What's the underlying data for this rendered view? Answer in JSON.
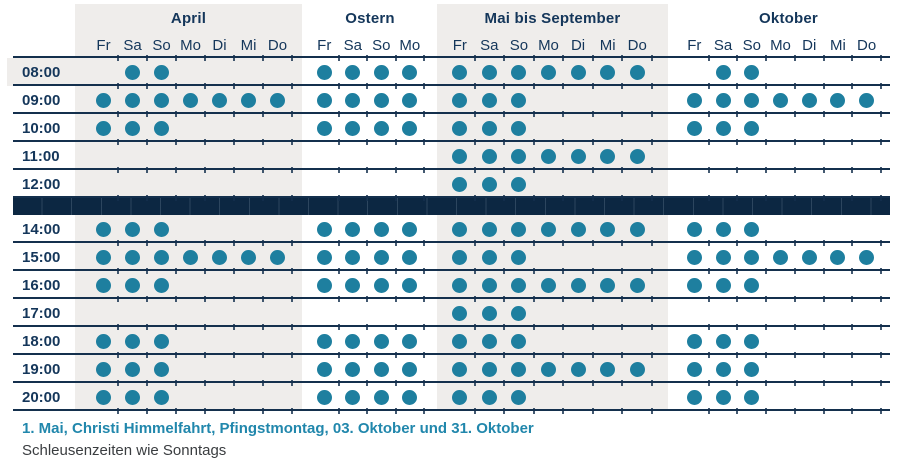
{
  "colors": {
    "navy_text": "#14365a",
    "separator_line": "#14304d",
    "closed_bar": "#0c2742",
    "dot_teal": "#1e7f9f",
    "footer_teal": "#2187ac",
    "band_gray": "#efedeb"
  },
  "schedule": {
    "groups": [
      {
        "id": "april",
        "label": "April",
        "shaded": true,
        "days": [
          "Fr",
          "Sa",
          "So",
          "Mo",
          "Di",
          "Mi",
          "Do"
        ]
      },
      {
        "id": "ostern",
        "label": "Ostern",
        "shaded": false,
        "days": [
          "Fr",
          "Sa",
          "So",
          "Mo"
        ]
      },
      {
        "id": "mai-bis-september",
        "label": "Mai bis September",
        "shaded": true,
        "days": [
          "Fr",
          "Sa",
          "So",
          "Mo",
          "Di",
          "Mi",
          "Do"
        ]
      },
      {
        "id": "oktober",
        "label": "Oktober",
        "shaded": false,
        "days": [
          "Fr",
          "Sa",
          "So",
          "Mo",
          "Di",
          "Mi",
          "Do"
        ]
      }
    ],
    "rows": [
      {
        "time": "08:00",
        "time_shaded": true,
        "dots": [
          [
            0,
            1,
            1,
            0,
            0,
            0,
            0
          ],
          [
            1,
            1,
            1,
            1
          ],
          [
            1,
            1,
            1,
            1,
            1,
            1,
            1
          ],
          [
            0,
            1,
            1,
            0,
            0,
            0,
            0
          ]
        ]
      },
      {
        "time": "09:00",
        "dots": [
          [
            1,
            1,
            1,
            1,
            1,
            1,
            1
          ],
          [
            1,
            1,
            1,
            1
          ],
          [
            1,
            1,
            1,
            0,
            0,
            0,
            0
          ],
          [
            1,
            1,
            1,
            1,
            1,
            1,
            1
          ]
        ]
      },
      {
        "time": "10:00",
        "dots": [
          [
            1,
            1,
            1,
            0,
            0,
            0,
            0
          ],
          [
            1,
            1,
            1,
            1
          ],
          [
            1,
            1,
            1,
            0,
            0,
            0,
            0
          ],
          [
            1,
            1,
            1,
            0,
            0,
            0,
            0
          ]
        ]
      },
      {
        "time": "11:00",
        "dots": [
          [
            0,
            0,
            0,
            0,
            0,
            0,
            0
          ],
          [
            0,
            0,
            0,
            0
          ],
          [
            1,
            1,
            1,
            1,
            1,
            1,
            1
          ],
          [
            0,
            0,
            0,
            0,
            0,
            0,
            0
          ]
        ]
      },
      {
        "time": "12:00",
        "dots": [
          [
            0,
            0,
            0,
            0,
            0,
            0,
            0
          ],
          [
            0,
            0,
            0,
            0
          ],
          [
            1,
            1,
            1,
            0,
            0,
            0,
            0
          ],
          [
            0,
            0,
            0,
            0,
            0,
            0,
            0
          ]
        ]
      },
      {
        "type": "closed"
      },
      {
        "time": "14:00",
        "dots": [
          [
            1,
            1,
            1,
            0,
            0,
            0,
            0
          ],
          [
            1,
            1,
            1,
            1
          ],
          [
            1,
            1,
            1,
            1,
            1,
            1,
            1
          ],
          [
            1,
            1,
            1,
            0,
            0,
            0,
            0
          ]
        ]
      },
      {
        "time": "15:00",
        "dots": [
          [
            1,
            1,
            1,
            1,
            1,
            1,
            1
          ],
          [
            1,
            1,
            1,
            1
          ],
          [
            1,
            1,
            1,
            0,
            0,
            0,
            0
          ],
          [
            1,
            1,
            1,
            1,
            1,
            1,
            1
          ]
        ]
      },
      {
        "time": "16:00",
        "dots": [
          [
            1,
            1,
            1,
            0,
            0,
            0,
            0
          ],
          [
            1,
            1,
            1,
            1
          ],
          [
            1,
            1,
            1,
            1,
            1,
            1,
            1
          ],
          [
            1,
            1,
            1,
            0,
            0,
            0,
            0
          ]
        ]
      },
      {
        "time": "17:00",
        "dots": [
          [
            0,
            0,
            0,
            0,
            0,
            0,
            0
          ],
          [
            0,
            0,
            0,
            0
          ],
          [
            1,
            1,
            1,
            0,
            0,
            0,
            0
          ],
          [
            0,
            0,
            0,
            0,
            0,
            0,
            0
          ]
        ]
      },
      {
        "time": "18:00",
        "dots": [
          [
            1,
            1,
            1,
            0,
            0,
            0,
            0
          ],
          [
            1,
            1,
            1,
            1
          ],
          [
            1,
            1,
            1,
            0,
            0,
            0,
            0
          ],
          [
            1,
            1,
            1,
            0,
            0,
            0,
            0
          ]
        ]
      },
      {
        "time": "19:00",
        "dots": [
          [
            1,
            1,
            1,
            0,
            0,
            0,
            0
          ],
          [
            1,
            1,
            1,
            1
          ],
          [
            1,
            1,
            1,
            1,
            1,
            1,
            1
          ],
          [
            1,
            1,
            1,
            0,
            0,
            0,
            0
          ]
        ]
      },
      {
        "time": "20:00",
        "dots": [
          [
            1,
            1,
            1,
            0,
            0,
            0,
            0
          ],
          [
            1,
            1,
            1,
            1
          ],
          [
            1,
            1,
            1,
            0,
            0,
            0,
            0
          ],
          [
            1,
            1,
            1,
            0,
            0,
            0,
            0
          ]
        ]
      }
    ]
  },
  "footer": {
    "holidays": "1. Mai, Christi Himmelfahrt, Pfingstmontag, 03. Oktober und 31. Oktober",
    "note": "Schleusenzeiten wie Sonntags"
  }
}
